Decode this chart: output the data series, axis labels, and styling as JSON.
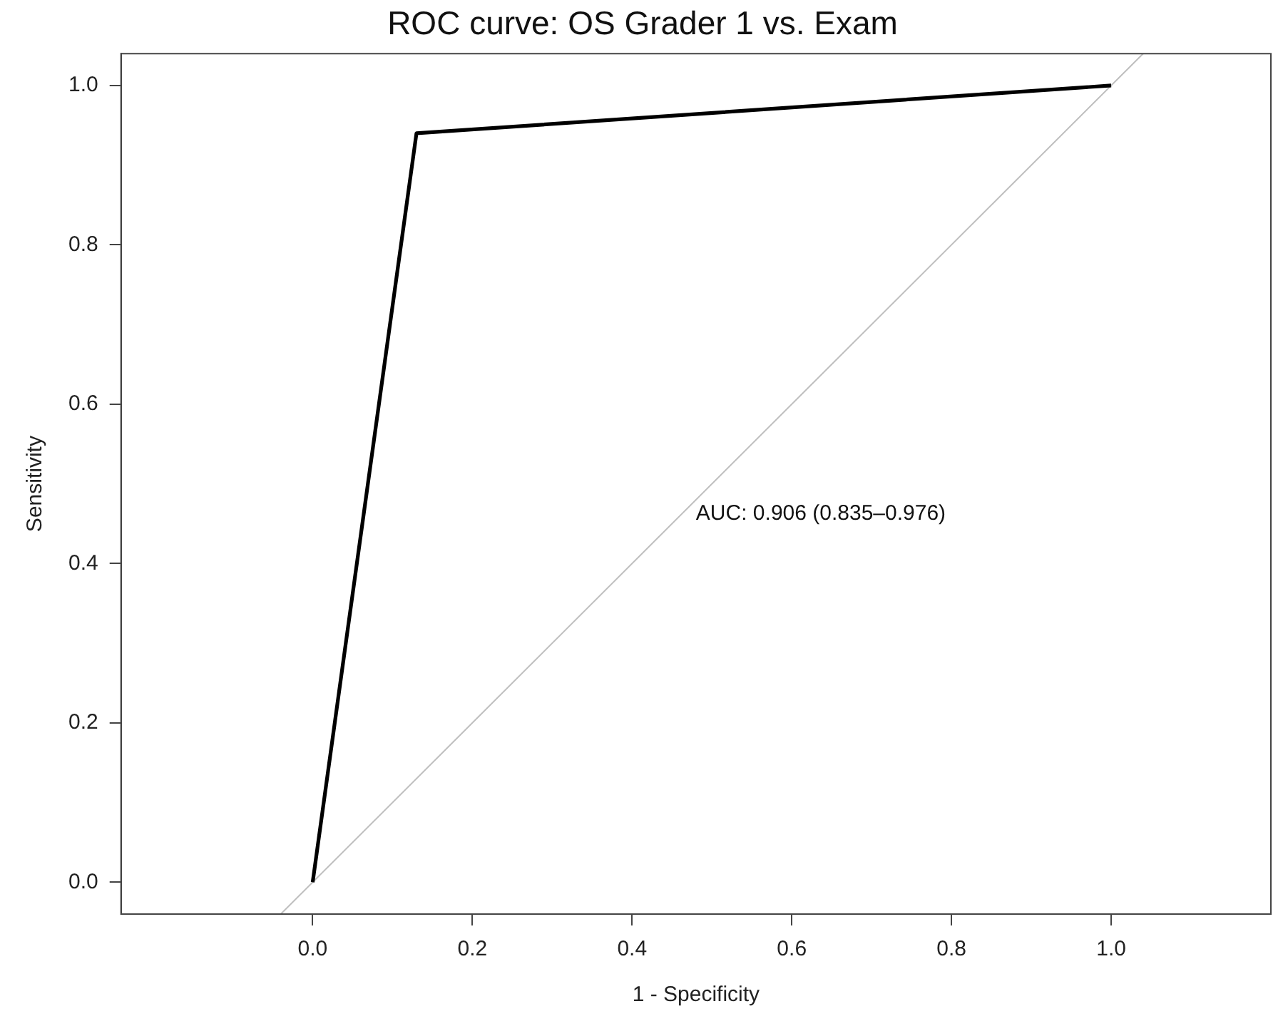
{
  "chart_data": {
    "type": "line",
    "title": "ROC curve: OS Grader 1 vs. Exam",
    "xlabel": "1 - Specificity",
    "ylabel": "Sensitivity",
    "series": [
      {
        "x": [
          0,
          0.13,
          1
        ],
        "values": [
          0,
          0.94,
          1
        ],
        "color": "#000000"
      },
      {
        "x": [
          -0.04,
          1.04
        ],
        "values": [
          -0.04,
          1.04
        ],
        "color": "#bebebe"
      }
    ],
    "annotations": [
      "AUC: 0.906 (0.835–0.976)"
    ],
    "xlim": [
      -0.24,
      1.2
    ],
    "ylim": [
      -0.04,
      1.04
    ],
    "xticks": [
      {
        "value": 0,
        "label": "0.0"
      },
      0.2,
      0.4,
      0.6,
      0.8,
      {
        "value": 1,
        "label": "1.0"
      }
    ],
    "yticks": [
      {
        "value": 0,
        "label": "0.0"
      },
      0.2,
      0.4,
      0.6,
      0.8,
      {
        "value": 1,
        "label": "1.0"
      }
    ],
    "grid": false,
    "legend": false,
    "marker": "none",
    "line_style": "solid"
  }
}
